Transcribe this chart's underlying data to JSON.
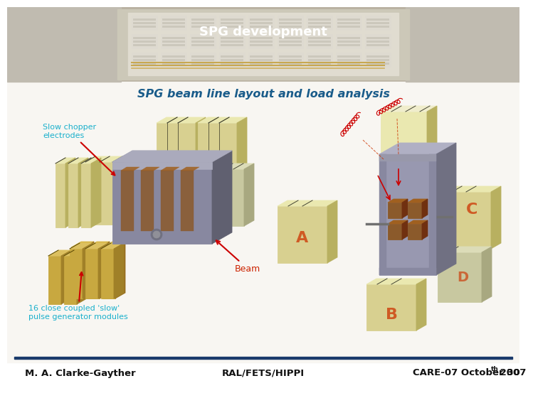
{
  "title_top": "SPG development",
  "title_main": "SPG beam line layout and load analysis",
  "label_slow_chopper": "Slow chopper\nelectrodes",
  "label_beam": "Beam",
  "label_16": "16 close coupled 'slow'\npulse generator modules",
  "footer_left": "M. A. Clarke-Gayther",
  "footer_center": "RAL/FETS/HIPPI",
  "footer_right": "CARE-07 October 30",
  "footer_superscript": "th",
  "footer_year": " 2007",
  "title_top_color": "#ffffff",
  "title_main_color": "#1a5c8a",
  "label_color": "#1ab0cc",
  "beam_label_color": "#cc2200",
  "footer_color": "#111111",
  "divider_color": "#1a3a6b",
  "slide_bg": "#ffffff",
  "arrow_color": "#cc0000",
  "elec_face": "#d8d090",
  "elec_top": "#eae8b0",
  "elec_side": "#b8b060",
  "elec_golden_face": "#c8a840",
  "elec_golden_top": "#dcc060",
  "elec_golden_side": "#a08028",
  "metal_face": "#8888a0",
  "metal_top": "#aaaabb",
  "metal_side": "#606070",
  "copper_color": "#8b5a2b",
  "header_bg": "#b8b0a0",
  "header_rack_bg": "#ccc8b8",
  "header_rack_inner": "#e0dcd0",
  "content_bg": "#f8f6f2"
}
